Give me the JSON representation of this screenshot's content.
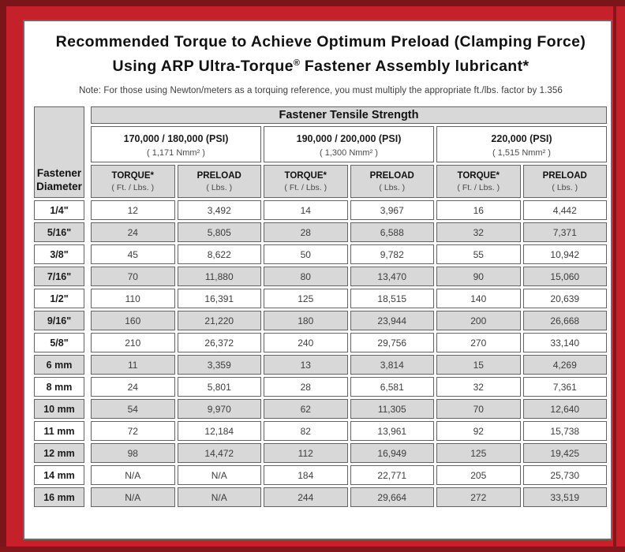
{
  "title": {
    "line1": "Recommended Torque to Achieve Optimum Preload (Clamping Force)",
    "line2_pre": "Using ARP Ultra-Torque",
    "line2_sup": "®",
    "line2_post": " Fastener Assembly lubricant*"
  },
  "note": "Note: For those using Newton/meters as a torquing reference, you must multiply the appropriate ft./lbs. factor by 1.356",
  "colors": {
    "frame_red": "#c5212b",
    "frame_maroon": "#7a151a",
    "cell_gray": "#d8d8d8",
    "border_gray": "#636363"
  },
  "chart_data": {
    "type": "table",
    "band_header": "Fastener Tensile Strength",
    "row_header": {
      "line1": "Fastener",
      "line2": "Diameter"
    },
    "groups": [
      {
        "psi": "170,000 / 180,000 (PSI)",
        "nmm": "( 1,171 Nmm² )"
      },
      {
        "psi": "190,000 / 200,000 (PSI)",
        "nmm": "( 1,300 Nmm² )"
      },
      {
        "psi": "220,000 (PSI)",
        "nmm": "( 1,515 Nmm² )"
      }
    ],
    "subheaders": {
      "torque_label": "TORQUE*",
      "torque_unit": "( Ft. / Lbs. )",
      "preload_label": "PRELOAD",
      "preload_unit": "( Lbs. )"
    },
    "rows": [
      {
        "diameter": "1/4\"",
        "values": [
          "12",
          "3,492",
          "14",
          "3,967",
          "16",
          "4,442"
        ]
      },
      {
        "diameter": "5/16\"",
        "values": [
          "24",
          "5,805",
          "28",
          "6,588",
          "32",
          "7,371"
        ]
      },
      {
        "diameter": "3/8\"",
        "values": [
          "45",
          "8,622",
          "50",
          "9,782",
          "55",
          "10,942"
        ]
      },
      {
        "diameter": "7/16\"",
        "values": [
          "70",
          "11,880",
          "80",
          "13,470",
          "90",
          "15,060"
        ]
      },
      {
        "diameter": "1/2\"",
        "values": [
          "110",
          "16,391",
          "125",
          "18,515",
          "140",
          "20,639"
        ]
      },
      {
        "diameter": "9/16\"",
        "values": [
          "160",
          "21,220",
          "180",
          "23,944",
          "200",
          "26,668"
        ]
      },
      {
        "diameter": "5/8\"",
        "values": [
          "210",
          "26,372",
          "240",
          "29,756",
          "270",
          "33,140"
        ]
      },
      {
        "diameter": "6 mm",
        "values": [
          "11",
          "3,359",
          "13",
          "3,814",
          "15",
          "4,269"
        ]
      },
      {
        "diameter": "8 mm",
        "values": [
          "24",
          "5,801",
          "28",
          "6,581",
          "32",
          "7,361"
        ]
      },
      {
        "diameter": "10 mm",
        "values": [
          "54",
          "9,970",
          "62",
          "11,305",
          "70",
          "12,640"
        ]
      },
      {
        "diameter": "11 mm",
        "values": [
          "72",
          "12,184",
          "82",
          "13,961",
          "92",
          "15,738"
        ]
      },
      {
        "diameter": "12 mm",
        "values": [
          "98",
          "14,472",
          "112",
          "16,949",
          "125",
          "19,425"
        ]
      },
      {
        "diameter": "14 mm",
        "values": [
          "N/A",
          "N/A",
          "184",
          "22,771",
          "205",
          "25,730"
        ]
      },
      {
        "diameter": "16 mm",
        "values": [
          "N/A",
          "N/A",
          "244",
          "29,664",
          "272",
          "33,519"
        ]
      }
    ]
  }
}
